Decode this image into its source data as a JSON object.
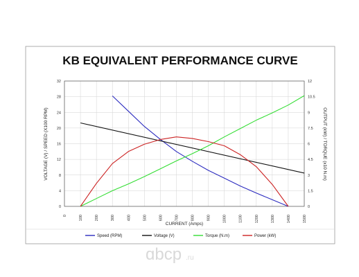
{
  "chart_data": {
    "type": "line",
    "title": "KB EQUIVALENT PERFORMANCE CURVE",
    "xlabel": "CURRENT (Amps)",
    "ylabel_left": "VOLTAGE (V) / SPEED (X100 RPM)",
    "ylabel_right": "OUTPUT (kW) / TORQUE (x10 N.m)",
    "xlim": [
      0,
      1500
    ],
    "ylim_left": [
      0,
      32
    ],
    "ylim_right": [
      0,
      12
    ],
    "x_ticks": [
      "0",
      "100",
      "200",
      "300",
      "400",
      "500",
      "600",
      "700",
      "800",
      "900",
      "1000",
      "1100",
      "1200",
      "1300",
      "1400",
      "1500"
    ],
    "y_left_ticks": [
      "0",
      "4",
      "8",
      "12",
      "16",
      "20",
      "24",
      "28",
      "32"
    ],
    "y_right_ticks": [
      "0",
      "1.5",
      "3",
      "4.5",
      "6",
      "7.5",
      "9",
      "10.5",
      "12"
    ],
    "legend_position": "bottom",
    "series": [
      {
        "name": "Speed (RPM)",
        "color": "#2b2bbf",
        "axis": "left",
        "x": [
          300,
          400,
          500,
          600,
          700,
          800,
          900,
          1000,
          1100,
          1200,
          1300,
          1400
        ],
        "y": [
          28.2,
          24.3,
          20.4,
          17.1,
          14.0,
          11.5,
          9.2,
          7.2,
          5.2,
          3.4,
          1.7,
          0.0
        ]
      },
      {
        "name": "Voltage (V)",
        "color": "#111111",
        "axis": "left",
        "x": [
          100,
          1500
        ],
        "y": [
          21.3,
          8.5
        ]
      },
      {
        "name": "Torque (N.m)",
        "color": "#33dd33",
        "axis": "right",
        "x": [
          100,
          200,
          300,
          400,
          500,
          600,
          700,
          800,
          900,
          1000,
          1100,
          1200,
          1300,
          1400,
          1500
        ],
        "y": [
          0.0,
          0.75,
          1.5,
          2.15,
          2.85,
          3.6,
          4.35,
          5.05,
          5.8,
          6.65,
          7.45,
          8.25,
          8.95,
          9.7,
          10.6
        ]
      },
      {
        "name": "Power (kW)",
        "color": "#cc2222",
        "axis": "right",
        "x": [
          100,
          200,
          300,
          400,
          500,
          600,
          700,
          800,
          900,
          1000,
          1100,
          1200,
          1300,
          1400
        ],
        "y": [
          0.0,
          2.2,
          4.1,
          5.25,
          5.95,
          6.4,
          6.65,
          6.5,
          6.2,
          5.8,
          4.95,
          3.8,
          2.1,
          0.0
        ]
      }
    ]
  },
  "watermark": {
    "text": "ɑbcp",
    "suffix": ".ru"
  }
}
